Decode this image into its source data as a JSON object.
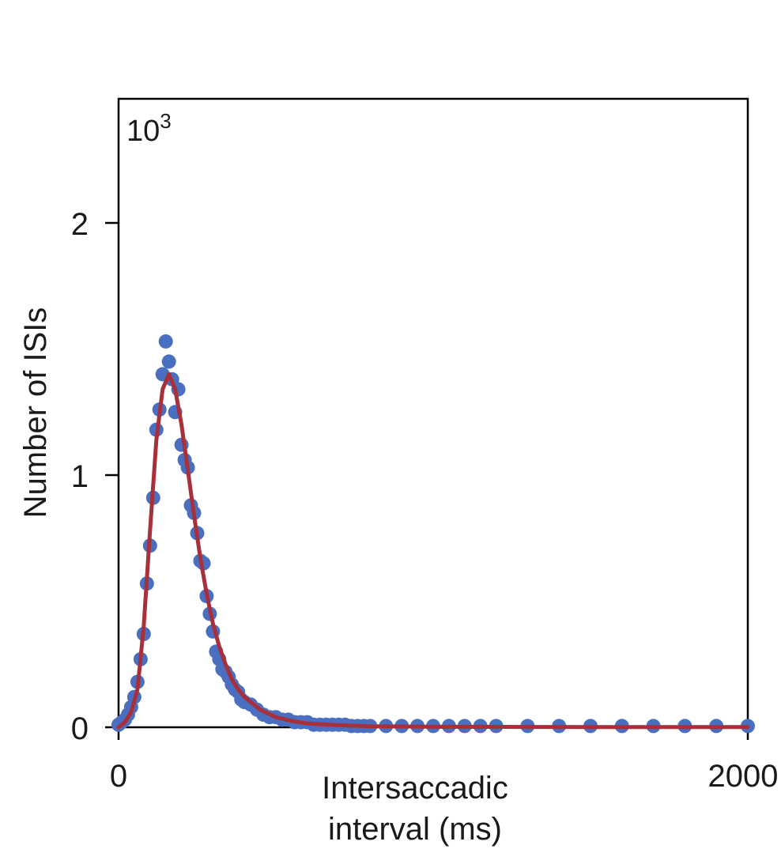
{
  "chart_data": {
    "type": "scatter",
    "title": "",
    "xlabel_line1": "Intersaccadic",
    "xlabel_line2": "interval (ms)",
    "ylabel": "Number of ISIs",
    "y_multiplier_base": "10",
    "y_multiplier_exp": "3",
    "xlim": [
      0,
      2000
    ],
    "ylim": [
      0,
      2.5
    ],
    "x_ticks": [
      0,
      2000
    ],
    "x_tick_labels": [
      "0",
      "2000"
    ],
    "y_ticks": [
      0,
      1,
      2
    ],
    "y_tick_labels": [
      "0",
      "1",
      "2"
    ],
    "grid": false,
    "colors": {
      "points": "#4a6fc1",
      "fit": "#a8303a",
      "axis": "#000000"
    },
    "series": [
      {
        "kind": "points",
        "x": [
          0,
          10,
          20,
          30,
          40,
          50,
          60,
          70,
          80,
          90,
          100,
          110,
          120,
          130,
          140,
          150,
          160,
          170,
          180,
          190,
          200,
          210,
          220,
          230,
          240,
          250,
          260,
          270,
          280,
          290,
          300,
          310,
          320,
          330,
          340,
          350,
          360,
          370,
          380,
          390,
          400,
          420,
          440,
          460,
          480,
          500,
          520,
          540,
          560,
          580,
          600,
          620,
          640,
          660,
          680,
          700,
          720,
          740,
          760,
          780,
          800,
          850,
          900,
          950,
          1000,
          1050,
          1100,
          1150,
          1200,
          1300,
          1400,
          1500,
          1600,
          1700,
          1800,
          1900,
          2000
        ],
        "y": [
          0.01,
          0.02,
          0.03,
          0.05,
          0.08,
          0.12,
          0.18,
          0.27,
          0.37,
          0.57,
          0.72,
          0.91,
          1.18,
          1.26,
          1.4,
          1.53,
          1.45,
          1.38,
          1.25,
          1.34,
          1.12,
          1.06,
          1.03,
          0.88,
          0.85,
          0.77,
          0.66,
          0.65,
          0.52,
          0.45,
          0.38,
          0.3,
          0.27,
          0.23,
          0.22,
          0.2,
          0.17,
          0.15,
          0.14,
          0.11,
          0.1,
          0.09,
          0.07,
          0.05,
          0.04,
          0.04,
          0.03,
          0.03,
          0.02,
          0.02,
          0.02,
          0.01,
          0.01,
          0.01,
          0.01,
          0.01,
          0.01,
          0.005,
          0.005,
          0.005,
          0.005,
          0.005,
          0.005,
          0.005,
          0.005,
          0.005,
          0.005,
          0.005,
          0.005,
          0.005,
          0.005,
          0.005,
          0.005,
          0.005,
          0.005,
          0.005,
          0.005
        ]
      },
      {
        "kind": "fit",
        "x": [
          0,
          20,
          40,
          60,
          80,
          100,
          120,
          140,
          160,
          180,
          200,
          220,
          240,
          260,
          280,
          300,
          320,
          340,
          360,
          380,
          400,
          450,
          500,
          550,
          600,
          700,
          800,
          1000,
          1500,
          2000
        ],
        "y": [
          0,
          0.02,
          0.06,
          0.15,
          0.4,
          0.78,
          1.14,
          1.34,
          1.4,
          1.34,
          1.2,
          1.02,
          0.84,
          0.67,
          0.53,
          0.41,
          0.32,
          0.25,
          0.19,
          0.15,
          0.12,
          0.07,
          0.04,
          0.025,
          0.015,
          0.008,
          0.004,
          0.002,
          0.001,
          0.001
        ]
      }
    ]
  }
}
